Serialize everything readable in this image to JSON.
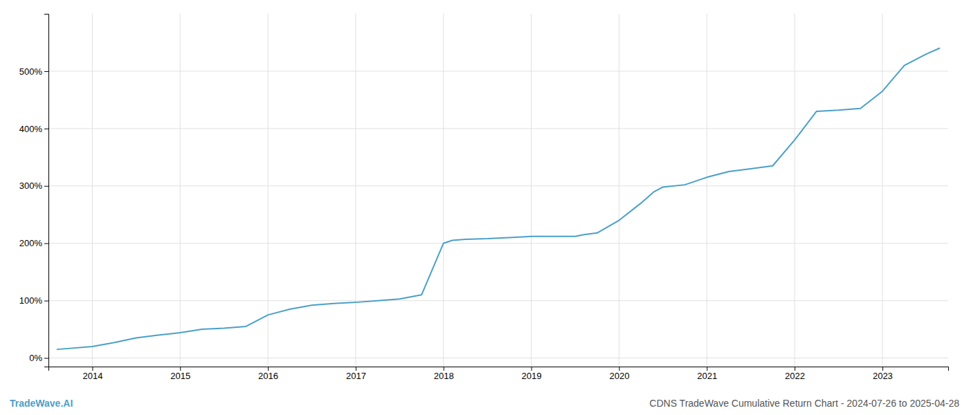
{
  "chart_data": {
    "type": "line",
    "title": "CDNS TradeWave Cumulative Return Chart - 2024-07-26 to 2025-04-28",
    "annotations": [
      {
        "text": "TradeWave.AI"
      }
    ],
    "color": "#4a9fc8",
    "grid": true,
    "x": [
      2013.6,
      2014.0,
      2014.25,
      2014.5,
      2014.75,
      2015.0,
      2015.25,
      2015.5,
      2015.75,
      2016.0,
      2016.25,
      2016.5,
      2016.75,
      2017.0,
      2017.25,
      2017.5,
      2017.75,
      2018.0,
      2018.1,
      2018.25,
      2018.5,
      2018.75,
      2019.0,
      2019.25,
      2019.5,
      2019.6,
      2019.75,
      2020.0,
      2020.25,
      2020.4,
      2020.5,
      2020.75,
      2021.0,
      2021.25,
      2021.5,
      2021.75,
      2022.0,
      2022.1,
      2022.25,
      2022.5,
      2022.75,
      2023.0,
      2023.25,
      2023.5,
      2023.65
    ],
    "values": [
      15,
      20,
      27,
      35,
      40,
      44,
      50,
      52,
      55,
      75,
      85,
      92,
      95,
      97,
      100,
      103,
      110,
      200,
      205,
      207,
      208,
      210,
      212,
      212,
      212,
      215,
      218,
      240,
      270,
      290,
      298,
      302,
      315,
      325,
      330,
      335,
      380,
      400,
      430,
      432,
      435,
      465,
      510,
      530,
      540
    ],
    "xlim": [
      2013.5,
      2023.75
    ],
    "xticks": [
      2014,
      2015,
      2016,
      2017,
      2018,
      2019,
      2020,
      2021,
      2022,
      2023
    ],
    "ylim": [
      -15,
      600
    ],
    "yticks": [
      {
        "value": 0,
        "label": "0%"
      },
      {
        "value": 100,
        "label": "100%"
      },
      {
        "value": 200,
        "label": "200%"
      },
      {
        "value": 300,
        "label": "300%"
      },
      {
        "value": 400,
        "label": "400%"
      },
      {
        "value": 500,
        "label": "500%"
      }
    ]
  }
}
